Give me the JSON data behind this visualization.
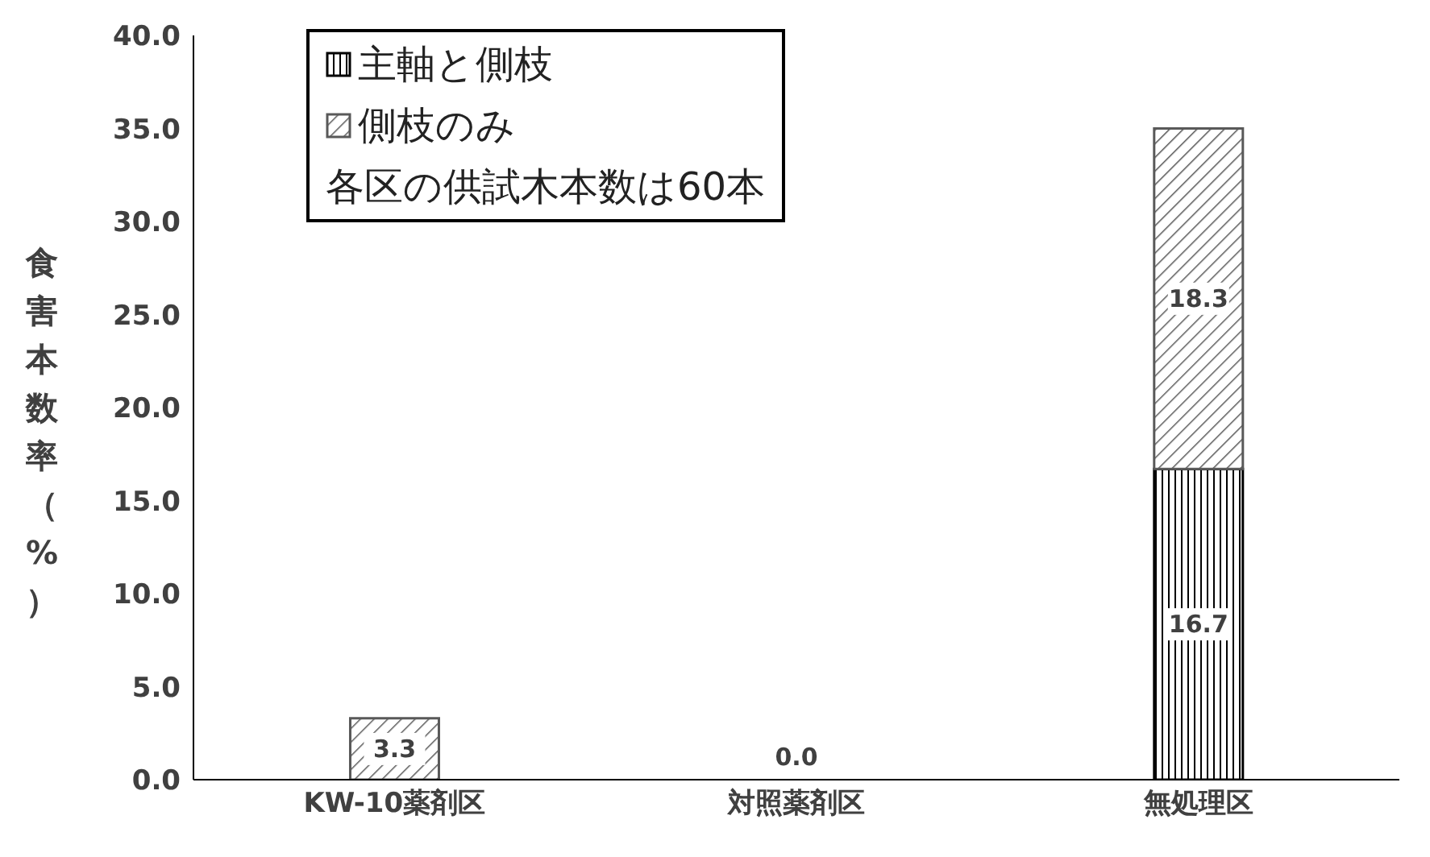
{
  "chart_data": {
    "type": "bar",
    "stacked": true,
    "ylabel": "食害本数率（%）",
    "categories": [
      "KW-10薬剤区",
      "対照薬剤区",
      "無処理区"
    ],
    "series": [
      {
        "name": "主軸と側枝",
        "color": "#000000",
        "values": [
          0,
          0,
          16.7
        ],
        "value_labels": [
          null,
          null,
          "16.7"
        ]
      },
      {
        "name": "側枝のみ",
        "color": "#595959",
        "values": [
          3.3,
          0,
          18.3
        ],
        "value_labels": [
          "3.3",
          "0.0",
          "18.3"
        ]
      }
    ],
    "ylim": [
      0,
      40
    ],
    "yticks": [
      {
        "value": 0,
        "label": "0.0"
      },
      {
        "value": 5,
        "label": "5.0"
      },
      {
        "value": 10,
        "label": "10.0"
      },
      {
        "value": 15,
        "label": "15.0"
      },
      {
        "value": 20,
        "label": "20.0"
      },
      {
        "value": 25,
        "label": "25.0"
      },
      {
        "value": 30,
        "label": "30.0"
      },
      {
        "value": 35,
        "label": "35.0"
      },
      {
        "value": 40,
        "label": "40.0"
      }
    ],
    "grid": false,
    "legend": "top left",
    "annotations": [
      "各区の供試木本数は60本"
    ]
  }
}
